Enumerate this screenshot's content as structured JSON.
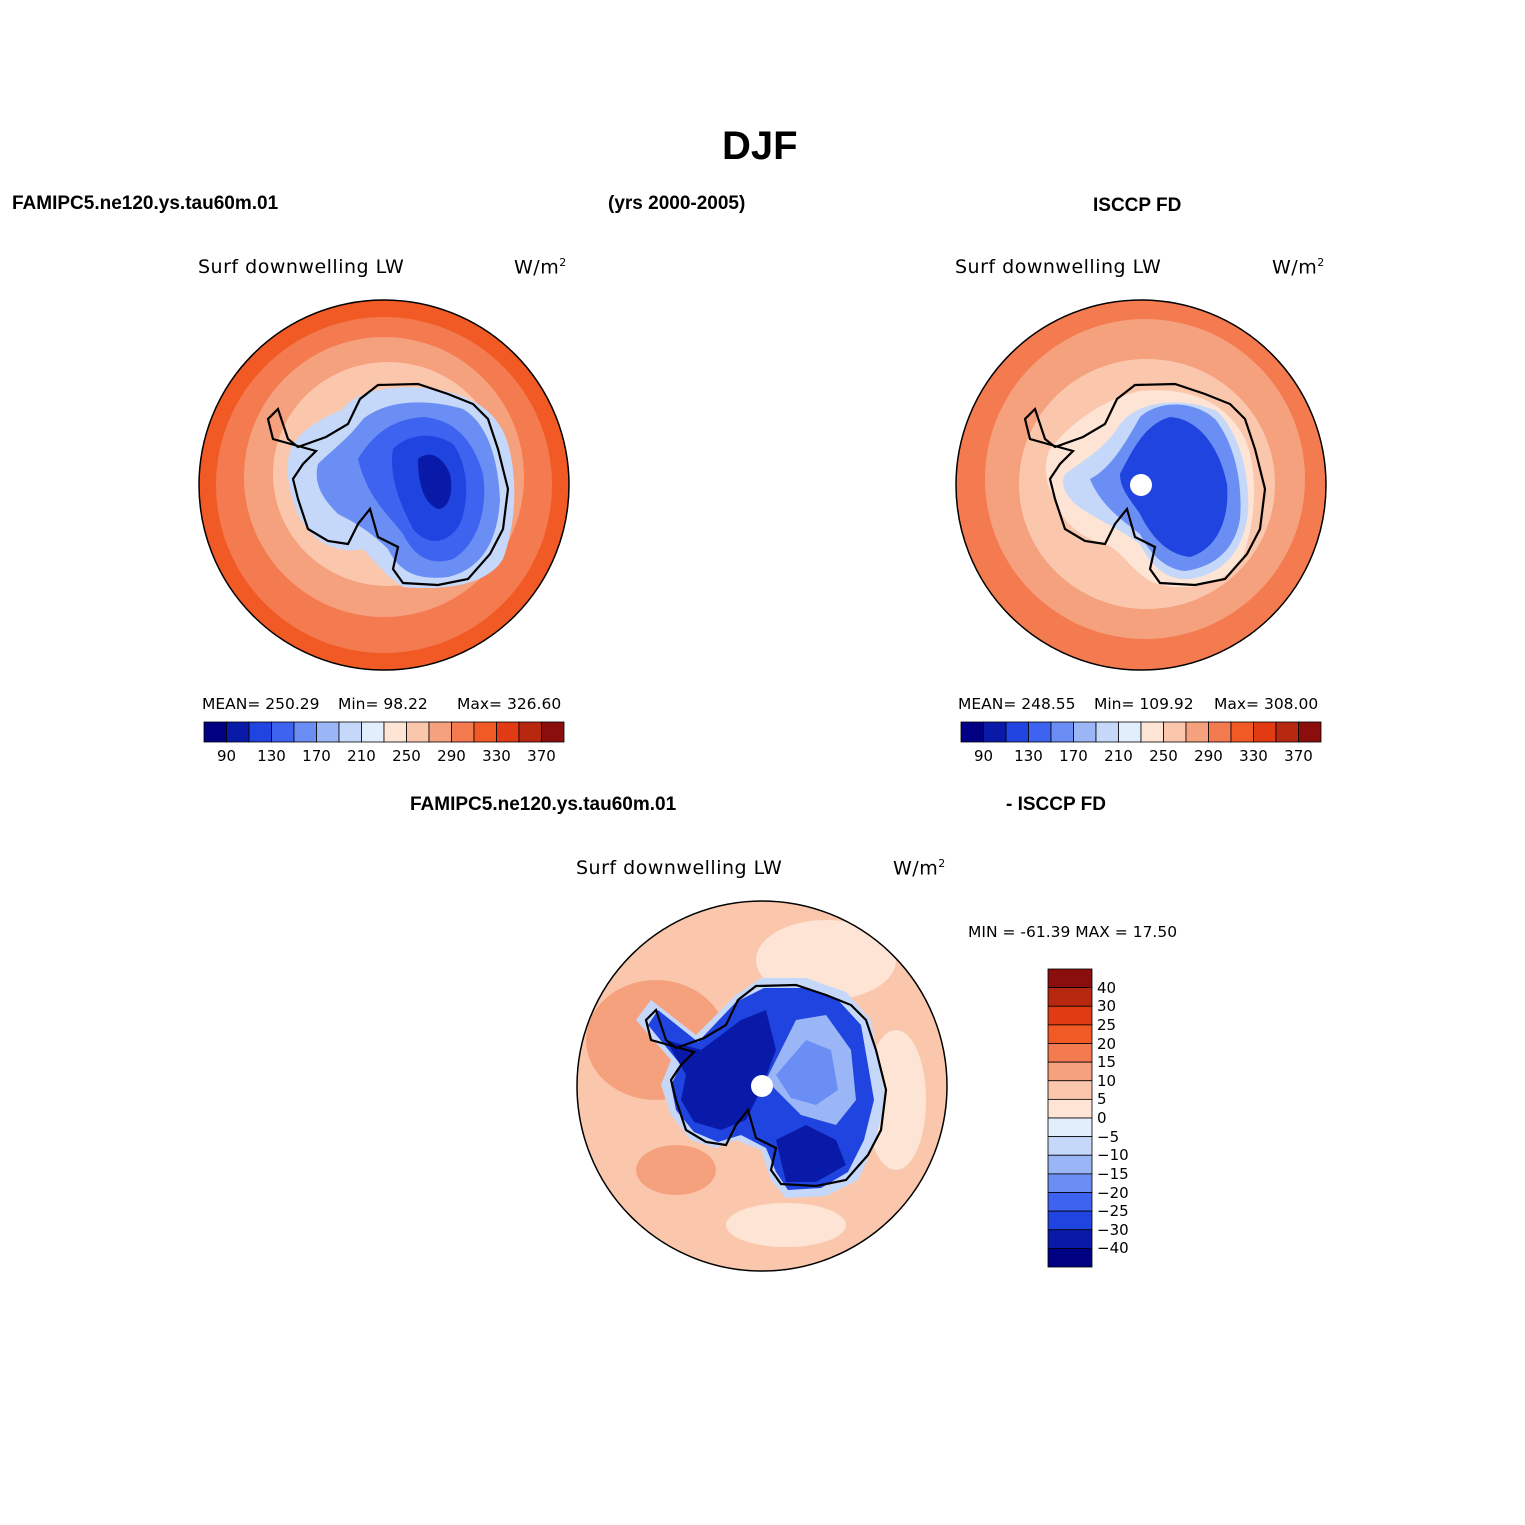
{
  "figure": {
    "season": "DJF",
    "left_case": "FAMIPC5.ne120.ys.tau60m.01",
    "years": "(yrs 2000-2005)",
    "right_case": "ISCCP FD",
    "diff_case_left": "FAMIPC5.ne120.ys.tau60m.01",
    "diff_case_right": "- ISCCP FD"
  },
  "chart_data": [
    {
      "type": "polar-contour-map",
      "region": "Antarctica (south polar stereographic)",
      "name": "model",
      "variable": "Surf downwelling LW",
      "units": "W/m",
      "units_exp": "2",
      "stats_text": {
        "mean": "MEAN= 250.29",
        "min": "Min=  98.22",
        "max": "Max= 326.60"
      },
      "stats": {
        "mean": 250.29,
        "min": 98.22,
        "max": 326.6
      },
      "levels": [
        90,
        110,
        130,
        150,
        170,
        190,
        210,
        230,
        250,
        270,
        290,
        310,
        330,
        350,
        370
      ],
      "tick_labels": [
        "90",
        "130",
        "170",
        "210",
        "250",
        "290",
        "330",
        "370"
      ]
    },
    {
      "type": "polar-contour-map",
      "region": "Antarctica (south polar stereographic)",
      "name": "obs",
      "variable": "Surf downwelling LW",
      "units": "W/m",
      "units_exp": "2",
      "stats_text": {
        "mean": "MEAN= 248.55",
        "min": "Min= 109.92",
        "max": "Max= 308.00"
      },
      "stats": {
        "mean": 248.55,
        "min": 109.92,
        "max": 308.0
      },
      "levels": [
        90,
        110,
        130,
        150,
        170,
        190,
        210,
        230,
        250,
        270,
        290,
        310,
        330,
        350,
        370
      ],
      "tick_labels": [
        "90",
        "130",
        "170",
        "210",
        "250",
        "290",
        "330",
        "370"
      ]
    },
    {
      "type": "polar-contour-map",
      "region": "Antarctica (south polar stereographic)",
      "name": "difference",
      "variable": "Surf downwelling LW",
      "units": "W/m",
      "units_exp": "2",
      "stats_text": "MIN = -61.39 MAX =  17.50",
      "stats": {
        "min": -61.39,
        "max": 17.5
      },
      "levels": [
        -40,
        -30,
        -25,
        -20,
        -15,
        -10,
        -5,
        0,
        5,
        10,
        15,
        20,
        25,
        30,
        40
      ],
      "tick_labels": [
        "40",
        "30",
        "25",
        "20",
        "15",
        "10",
        "5",
        "0",
        "−5",
        "−10",
        "−15",
        "−20",
        "−25",
        "−30",
        "−40"
      ]
    }
  ],
  "palette": [
    "#000083",
    "#0a1aa8",
    "#1f44e0",
    "#3d63f0",
    "#6a8ef4",
    "#9ab6f7",
    "#c6d8f9",
    "#e3eefc",
    "#fde4d4",
    "#fac7ad",
    "#f6a17e",
    "#f47a50",
    "#f15a24",
    "#e03b12",
    "#b82810",
    "#8a0e0e"
  ]
}
